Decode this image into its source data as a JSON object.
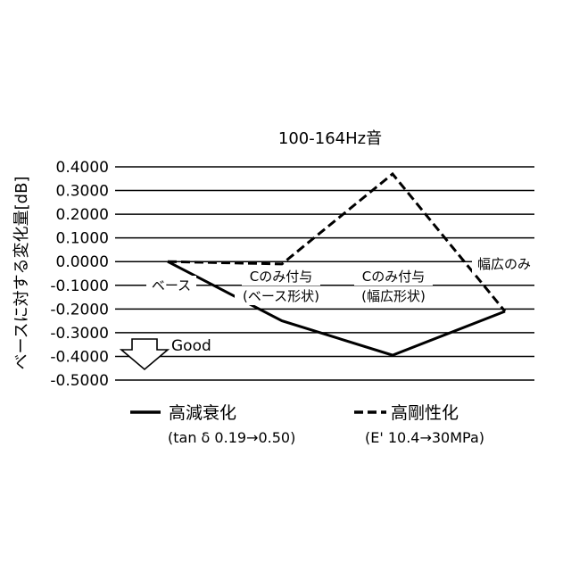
{
  "chart_data": {
    "type": "line",
    "title": "100-164Hz音",
    "xlabel": "",
    "ylabel": "ベースに対する変化量[dB]",
    "ylim": [
      -0.5,
      0.4
    ],
    "yticks": [
      "0.4000",
      "0.3000",
      "0.2000",
      "0.1000",
      "0.0000",
      "-0.1000",
      "-0.2000",
      "-0.3000",
      "-0.4000",
      "-0.5000"
    ],
    "grid": true,
    "categories": [
      {
        "label": "ベース",
        "sublabel": ""
      },
      {
        "label": "Cのみ付与",
        "sublabel": "(ベース形状)"
      },
      {
        "label": "Cのみ付与",
        "sublabel": "(幅広形状)"
      },
      {
        "label": "幅広のみ",
        "sublabel": ""
      }
    ],
    "series": [
      {
        "name": "高減衰化",
        "detail": "(tan δ 0.19→0.50)",
        "style": "solid",
        "values": [
          0.0,
          -0.25,
          -0.395,
          -0.21
        ]
      },
      {
        "name": "高剛性化",
        "detail": "(E' 10.4→30MPa)",
        "style": "dashed",
        "values": [
          0.0,
          -0.01,
          0.37,
          -0.21
        ]
      }
    ],
    "annotation": {
      "label": "Good",
      "direction": "down"
    },
    "legend_position": "bottom",
    "line_color": "#000000"
  }
}
